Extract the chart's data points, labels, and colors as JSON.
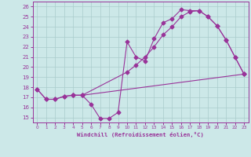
{
  "xlabel": "Windchill (Refroidissement éolien,°C)",
  "xlim": [
    -0.5,
    23.5
  ],
  "ylim": [
    14.5,
    26.5
  ],
  "yticks": [
    15,
    16,
    17,
    18,
    19,
    20,
    21,
    22,
    23,
    24,
    25,
    26
  ],
  "xticks": [
    0,
    1,
    2,
    3,
    4,
    5,
    6,
    7,
    8,
    9,
    10,
    11,
    12,
    13,
    14,
    15,
    16,
    17,
    18,
    19,
    20,
    21,
    22,
    23
  ],
  "bg_color": "#cce8e8",
  "grid_color": "#aacccc",
  "line_color": "#993399",
  "line1_x": [
    0,
    1,
    2,
    3,
    4,
    5,
    6,
    7,
    8,
    9,
    10,
    11,
    12,
    13,
    14,
    15,
    16,
    17,
    18,
    19,
    20,
    21,
    22,
    23
  ],
  "line1_y": [
    17.8,
    16.8,
    16.8,
    17.1,
    17.2,
    17.2,
    16.3,
    14.9,
    14.9,
    15.5,
    22.5,
    21.0,
    20.6,
    22.8,
    24.4,
    24.8,
    25.7,
    25.6,
    25.6,
    25.0,
    24.1,
    22.7,
    21.0,
    19.3
  ],
  "line2_x": [
    0,
    1,
    2,
    3,
    4,
    5,
    23
  ],
  "line2_y": [
    17.8,
    16.8,
    16.8,
    17.1,
    17.2,
    17.2,
    19.3
  ],
  "line3_x": [
    4,
    5,
    10,
    11,
    12,
    13,
    14,
    15,
    16,
    17,
    18,
    19,
    20,
    21,
    22,
    23
  ],
  "line3_y": [
    17.2,
    17.2,
    19.5,
    20.2,
    21.0,
    22.0,
    23.2,
    24.0,
    25.0,
    25.5,
    25.6,
    25.0,
    24.1,
    22.7,
    21.0,
    19.3
  ]
}
